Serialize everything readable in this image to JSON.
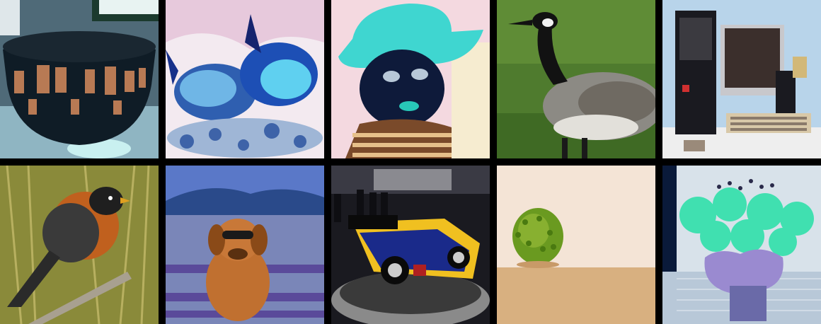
{
  "grid": {
    "rows": 2,
    "columns": 5,
    "background": "#000000",
    "tiles": [
      {
        "subject": "patterned-bowl",
        "color_mode": "inverted"
      },
      {
        "subject": "goldfish",
        "color_mode": "inverted"
      },
      {
        "subject": "child-in-cowboy-hat",
        "color_mode": "inverted"
      },
      {
        "subject": "canada-goose",
        "color_mode": "normal"
      },
      {
        "subject": "desktop-computer",
        "color_mode": "inverted"
      },
      {
        "subject": "robin-on-branch",
        "color_mode": "normal"
      },
      {
        "subject": "dog-with-sunglasses",
        "color_mode": "color-shifted"
      },
      {
        "subject": "race-car-on-display",
        "color_mode": "normal"
      },
      {
        "subject": "spiky-green-fruit",
        "color_mode": "normal"
      },
      {
        "subject": "flowers-in-vase",
        "color_mode": "inverted"
      }
    ]
  }
}
